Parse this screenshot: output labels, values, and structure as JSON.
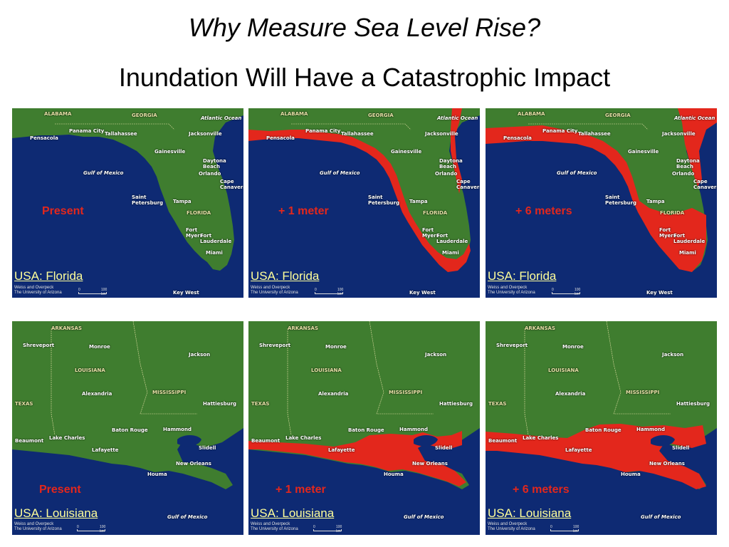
{
  "title": "Why Measure Sea Level Rise?",
  "subtitle": "Inundation Will Have a Catastrophic Impact",
  "colors": {
    "water": "#0e2a73",
    "land": "#3f7d2f",
    "flooded": "#e3271c",
    "region_text": "#ffff9a"
  },
  "credit": "Weiss and Overpeck\nThe University of Arizona",
  "scale": {
    "zero": "0",
    "km": "100 km"
  },
  "florida": {
    "region": "USA: Florida",
    "labels": {
      "alabama": "ALABAMA",
      "georgia": "GEORGIA",
      "atlantic": "Atlantic Ocean",
      "panama_city": "Panama City",
      "tallahassee": "Tallahassee",
      "jacksonville": "Jacksonville",
      "pensacola": "Pensacola",
      "gainesville": "Gainesville",
      "daytona": "Daytona\nBeach",
      "orlando": "Orlando",
      "gulf": "Gulf of Mexico",
      "cape": "Cape\nCanaveral",
      "st_pete": "Saint\nPetersburg",
      "tampa": "Tampa",
      "florida": "FLORIDA",
      "fort_myers": "Fort\nMyers",
      "fort_lauderdale": "Fort\nLauderdale",
      "miami": "Miami",
      "key_west": "Key West"
    },
    "panels": [
      {
        "scenario": "Present",
        "flood_level": 0
      },
      {
        "scenario": "+ 1 meter",
        "flood_level": 1
      },
      {
        "scenario": "+ 6 meters",
        "flood_level": 6
      }
    ]
  },
  "louisiana": {
    "region": "USA: Louisiana",
    "labels": {
      "arkansas": "ARKANSAS",
      "shreveport": "Shreveport",
      "monroe": "Monroe",
      "jackson": "Jackson",
      "louisiana": "LOUISIANA",
      "alexandria": "Alexandria",
      "mississippi": "MISSISSIPPI",
      "texas": "TEXAS",
      "hattiesburg": "Hattiesburg",
      "baton_rouge": "Baton Rouge",
      "hammond": "Hammond",
      "lake_charles": "Lake Charles",
      "beaumont": "Beaumont",
      "lafayette": "Lafayette",
      "slidell": "Slidell",
      "new_orleans": "New Orleans",
      "houma": "Houma",
      "gulf": "Gulf of Mexico"
    },
    "panels": [
      {
        "scenario": "Present",
        "flood_level": 0
      },
      {
        "scenario": "+ 1 meter",
        "flood_level": 1
      },
      {
        "scenario": "+ 6 meters",
        "flood_level": 6
      }
    ]
  }
}
